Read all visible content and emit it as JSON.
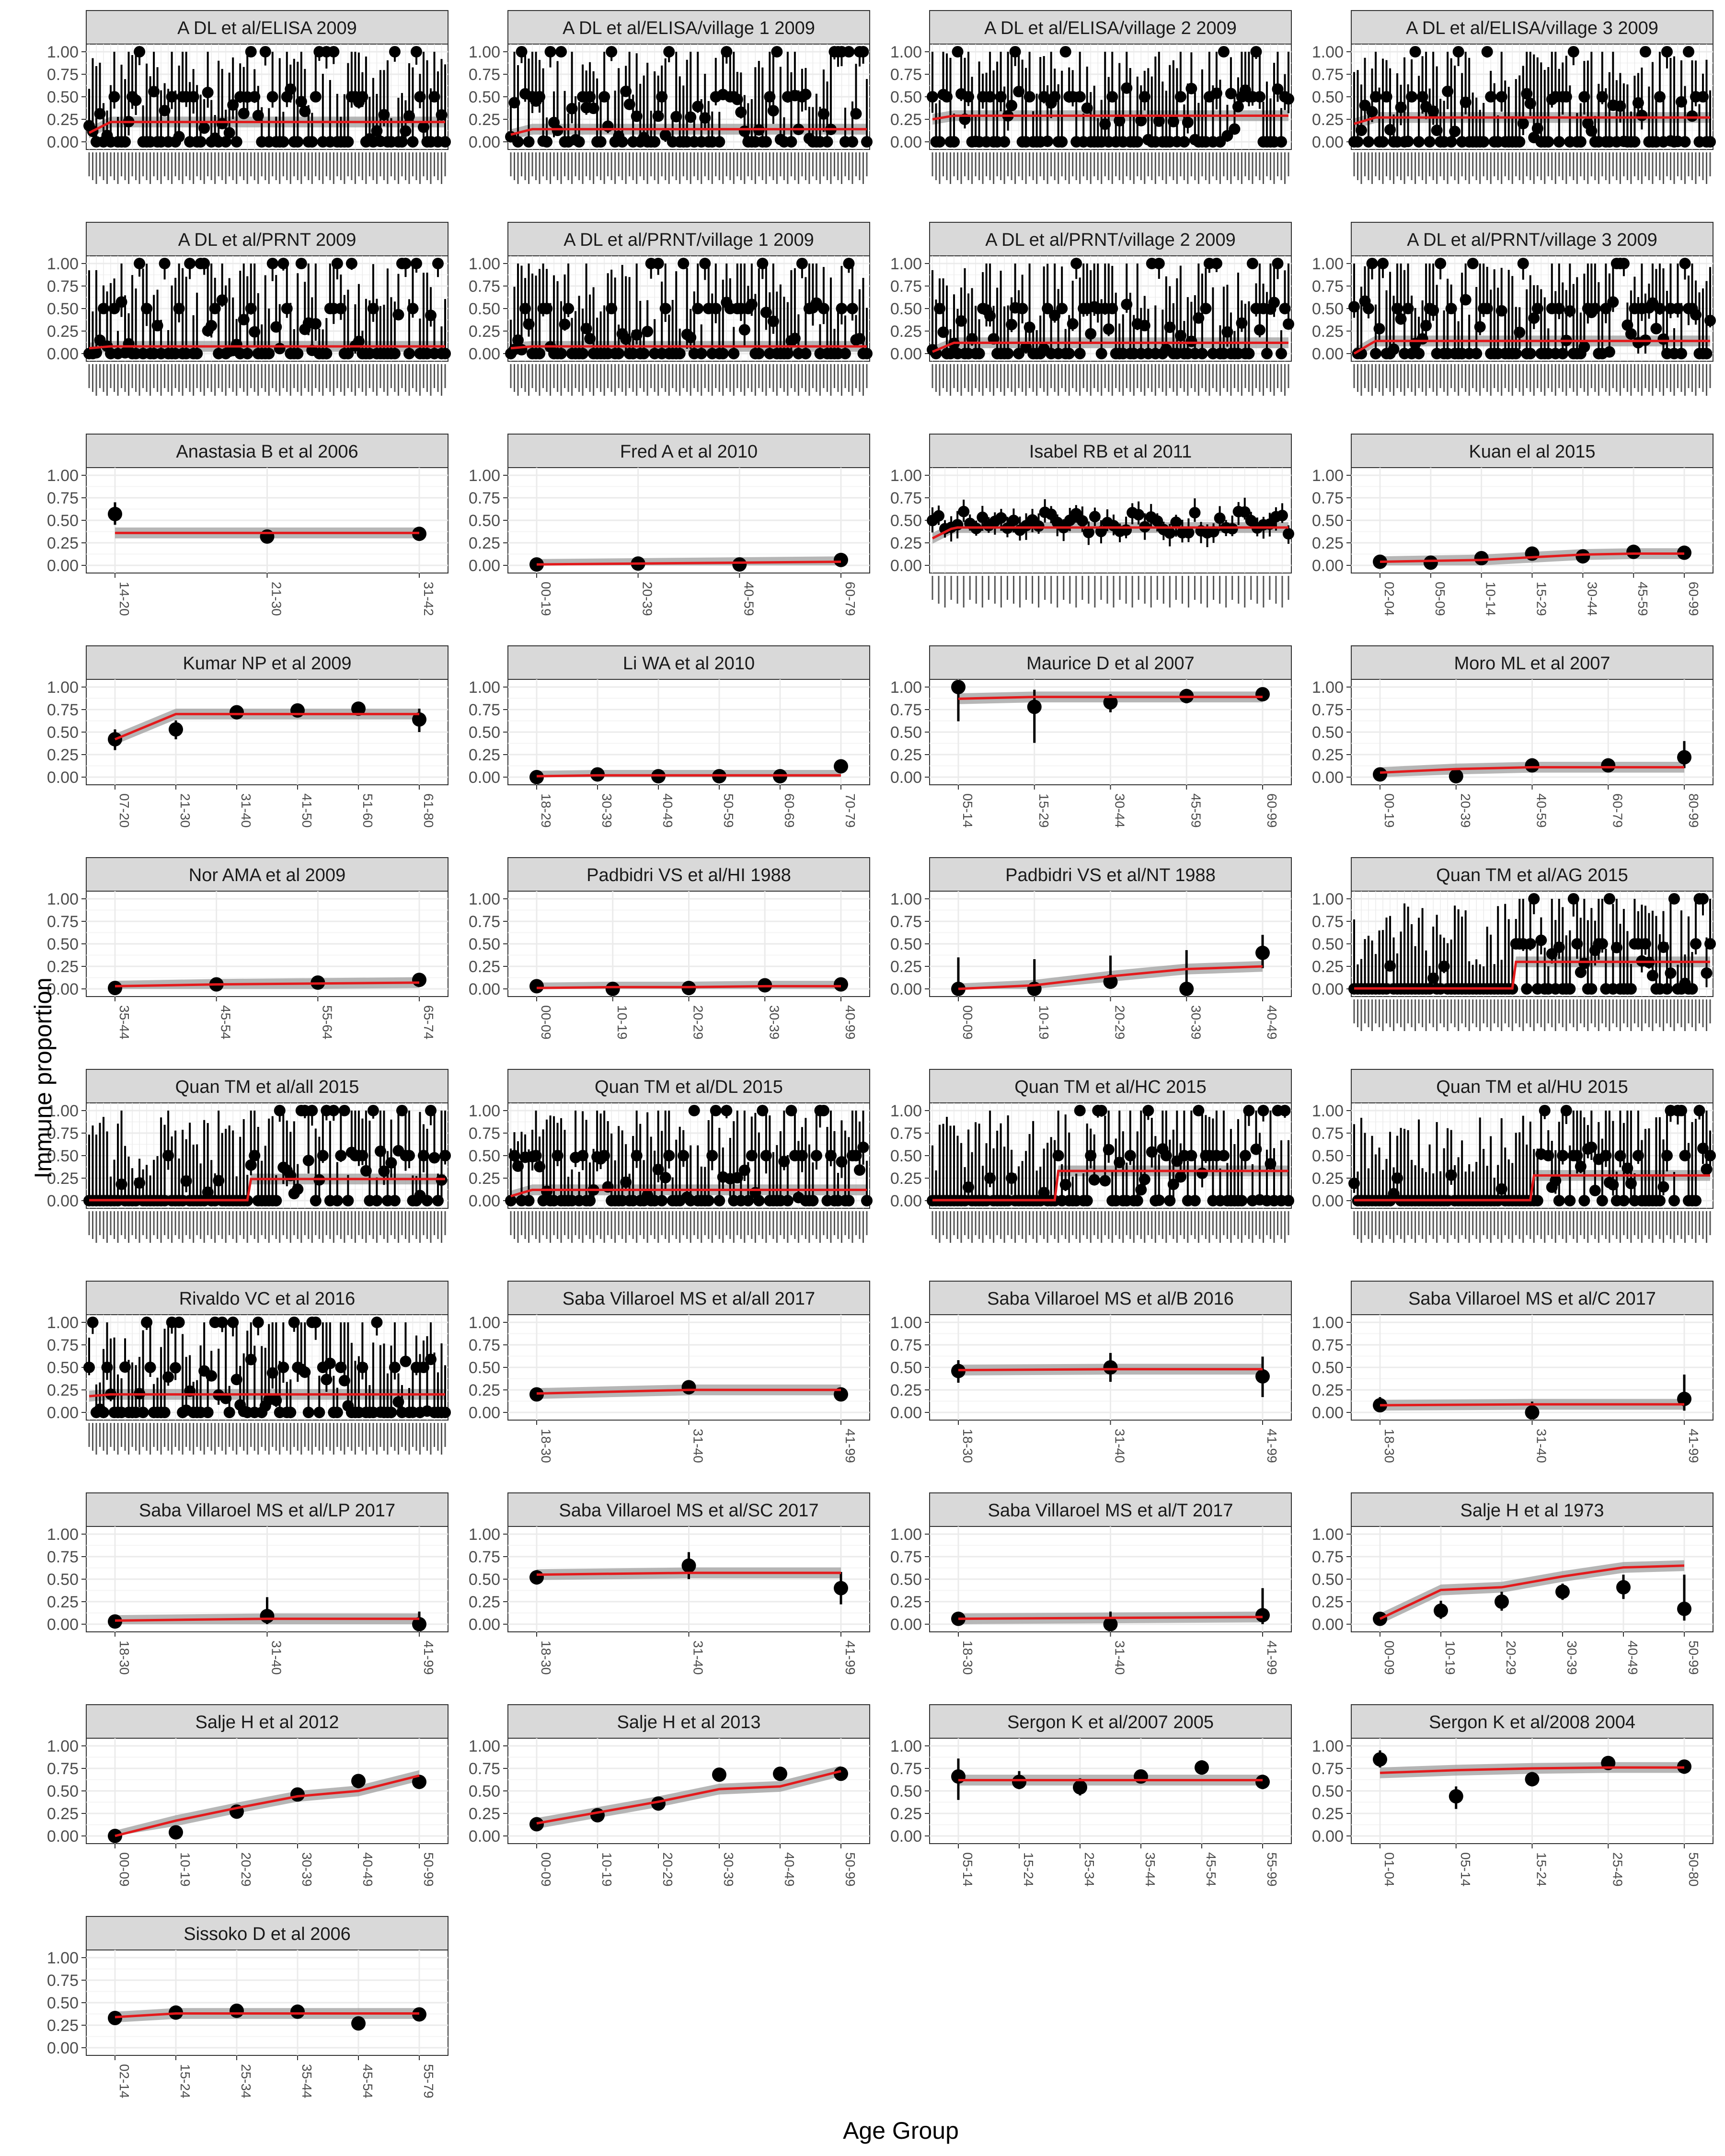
{
  "figure": {
    "xlabel": "Age Group",
    "ylabel": "Immune proportion",
    "yticks": [
      "0.00",
      "0.25",
      "0.50",
      "0.75",
      "1.00"
    ],
    "colors": {
      "strip_bg": "#d9d9d9",
      "panel_border": "#333333",
      "grid": "#ebebeb",
      "fit": "#e31a1c",
      "band": "#9e9e9e",
      "point": "#000000"
    }
  },
  "chart_data": [
    {
      "type": "scatter",
      "title": "A DL et al/ELISA 2009",
      "dense": true,
      "n": 100,
      "fit_level": 0.22,
      "fit_start": 0.1,
      "seed": 11,
      "ylim": [
        0,
        1
      ]
    },
    {
      "type": "scatter",
      "title": "A DL et al/ELISA/village 1 2009",
      "dense": true,
      "n": 100,
      "fit_level": 0.14,
      "fit_start": 0.08,
      "seed": 12,
      "ylim": [
        0,
        1
      ]
    },
    {
      "type": "scatter",
      "title": "A DL et al/ELISA/village 2 2009",
      "dense": true,
      "n": 100,
      "fit_level": 0.29,
      "fit_start": 0.25,
      "seed": 13,
      "ylim": [
        0,
        1
      ]
    },
    {
      "type": "scatter",
      "title": "A DL et al/ELISA/village 3 2009",
      "dense": true,
      "n": 100,
      "fit_level": 0.27,
      "fit_start": 0.2,
      "seed": 14,
      "ylim": [
        0,
        1
      ]
    },
    {
      "type": "scatter",
      "title": "A DL et al/PRNT 2009",
      "dense": true,
      "n": 100,
      "fit_level": 0.08,
      "fit_start": 0.06,
      "seed": 15,
      "ylim": [
        0,
        1
      ]
    },
    {
      "type": "scatter",
      "title": "A DL et al/PRNT/village 1 2009",
      "dense": true,
      "n": 100,
      "fit_level": 0.08,
      "fit_start": 0.06,
      "seed": 16,
      "ylim": [
        0,
        1
      ]
    },
    {
      "type": "scatter",
      "title": "A DL et al/PRNT/village 2 2009",
      "dense": true,
      "n": 100,
      "fit_level": 0.12,
      "fit_start": 0.02,
      "seed": 17,
      "ylim": [
        0,
        1
      ]
    },
    {
      "type": "scatter",
      "title": "A DL et al/PRNT/village 3 2009",
      "dense": true,
      "n": 100,
      "fit_level": 0.14,
      "fit_start": 0.0,
      "seed": 18,
      "ylim": [
        0,
        1
      ]
    },
    {
      "type": "scatter",
      "title": "Anastasia B et al 2006",
      "categories": [
        "14-20",
        "21-30",
        "31-42"
      ],
      "values": [
        0.57,
        0.32,
        0.35
      ],
      "lower": [
        0.45,
        0.29,
        0.31
      ],
      "upper": [
        0.7,
        0.36,
        0.4
      ],
      "fit": [
        0.36,
        0.36,
        0.36
      ],
      "ylim": [
        0,
        1
      ]
    },
    {
      "type": "scatter",
      "title": "Fred A et al 2010",
      "categories": [
        "00-19",
        "20-39",
        "40-59",
        "60-79"
      ],
      "values": [
        0.01,
        0.02,
        0.01,
        0.06
      ],
      "lower": [
        0.0,
        0.0,
        0.0,
        0.02
      ],
      "upper": [
        0.04,
        0.05,
        0.04,
        0.12
      ],
      "fit": [
        0.01,
        0.02,
        0.03,
        0.04
      ],
      "ylim": [
        0,
        1
      ]
    },
    {
      "type": "scatter",
      "title": "Isabel RB et al 2011",
      "dense": true,
      "n": 58,
      "fit_level": 0.42,
      "fit_start": 0.3,
      "mid": true,
      "seed": 19,
      "ylim": [
        0,
        1
      ]
    },
    {
      "type": "scatter",
      "title": "Kuan el al 2015",
      "categories": [
        "02-04",
        "05-09",
        "10-14",
        "15-29",
        "30-44",
        "45-59",
        "60-99"
      ],
      "values": [
        0.04,
        0.03,
        0.08,
        0.13,
        0.1,
        0.15,
        0.14
      ],
      "lower": [
        0.02,
        0.01,
        0.05,
        0.1,
        0.07,
        0.12,
        0.1
      ],
      "upper": [
        0.07,
        0.06,
        0.11,
        0.16,
        0.14,
        0.19,
        0.18
      ],
      "fit": [
        0.04,
        0.05,
        0.06,
        0.09,
        0.12,
        0.13,
        0.13
      ],
      "ylim": [
        0,
        1
      ]
    },
    {
      "type": "scatter",
      "title": "Kumar NP et al 2009",
      "categories": [
        "07-20",
        "21-30",
        "31-40",
        "41-50",
        "51-60",
        "61-80"
      ],
      "values": [
        0.42,
        0.53,
        0.72,
        0.74,
        0.76,
        0.64
      ],
      "lower": [
        0.3,
        0.42,
        0.64,
        0.67,
        0.7,
        0.5
      ],
      "upper": [
        0.53,
        0.63,
        0.79,
        0.8,
        0.82,
        0.76
      ],
      "fit": [
        0.42,
        0.7,
        0.7,
        0.7,
        0.7,
        0.7
      ],
      "ylim": [
        0,
        1
      ]
    },
    {
      "type": "scatter",
      "title": "Li WA et al 2010",
      "categories": [
        "18-29",
        "30-39",
        "40-49",
        "50-59",
        "60-69",
        "70-79"
      ],
      "values": [
        0.0,
        0.03,
        0.01,
        0.01,
        0.01,
        0.12
      ],
      "lower": [
        0.0,
        0.01,
        0.0,
        0.0,
        0.0,
        0.08
      ],
      "upper": [
        0.03,
        0.06,
        0.03,
        0.03,
        0.03,
        0.16
      ],
      "fit": [
        0.01,
        0.02,
        0.02,
        0.02,
        0.02,
        0.02
      ],
      "ylim": [
        0,
        1
      ]
    },
    {
      "type": "scatter",
      "title": "Maurice D et al 2007",
      "categories": [
        "05-14",
        "15-29",
        "30-44",
        "45-59",
        "60-99"
      ],
      "values": [
        1.0,
        0.78,
        0.83,
        0.9,
        0.92
      ],
      "lower": [
        0.62,
        0.38,
        0.72,
        0.82,
        0.87
      ],
      "upper": [
        1.0,
        0.97,
        0.92,
        0.96,
        0.96
      ],
      "fit": [
        0.87,
        0.89,
        0.89,
        0.89,
        0.89
      ],
      "ylim": [
        0,
        1
      ]
    },
    {
      "type": "scatter",
      "title": "Moro ML et al 2007",
      "categories": [
        "00-19",
        "20-39",
        "40-59",
        "60-79",
        "80-99"
      ],
      "values": [
        0.03,
        0.01,
        0.13,
        0.13,
        0.22
      ],
      "lower": [
        0.0,
        0.0,
        0.09,
        0.1,
        0.1
      ],
      "upper": [
        0.09,
        0.06,
        0.18,
        0.17,
        0.4
      ],
      "fit": [
        0.05,
        0.09,
        0.11,
        0.11,
        0.11
      ],
      "ylim": [
        0,
        1
      ]
    },
    {
      "type": "scatter",
      "title": "Nor AMA et al 2009",
      "categories": [
        "35-44",
        "45-54",
        "55-64",
        "65-74"
      ],
      "values": [
        0.01,
        0.05,
        0.07,
        0.1
      ],
      "lower": [
        0.0,
        0.03,
        0.05,
        0.06
      ],
      "upper": [
        0.04,
        0.08,
        0.1,
        0.16
      ],
      "fit": [
        0.03,
        0.05,
        0.06,
        0.07
      ],
      "ylim": [
        0,
        1
      ]
    },
    {
      "type": "scatter",
      "title": "Padbidri VS et al/HI 1988",
      "categories": [
        "00-09",
        "10-19",
        "20-29",
        "30-39",
        "40-99"
      ],
      "values": [
        0.03,
        0.0,
        0.01,
        0.04,
        0.05
      ],
      "lower": [
        0.0,
        0.0,
        0.0,
        0.01,
        0.02
      ],
      "upper": [
        0.06,
        0.03,
        0.04,
        0.07,
        0.09
      ],
      "fit": [
        0.01,
        0.02,
        0.02,
        0.03,
        0.03
      ],
      "ylim": [
        0,
        1
      ]
    },
    {
      "type": "scatter",
      "title": "Padbidri VS et al/NT 1988",
      "categories": [
        "00-09",
        "10-19",
        "20-29",
        "30-39",
        "40-49"
      ],
      "values": [
        0.0,
        0.0,
        0.08,
        0.0,
        0.4
      ],
      "lower": [
        0.0,
        0.0,
        0.0,
        0.0,
        0.23
      ],
      "upper": [
        0.35,
        0.33,
        0.37,
        0.43,
        0.6
      ],
      "fit": [
        0.0,
        0.04,
        0.14,
        0.22,
        0.25
      ],
      "ylim": [
        0,
        1
      ]
    },
    {
      "type": "scatter",
      "title": "Quan TM et al/AG 2015",
      "dense": true,
      "n": 100,
      "fit_level": 0.3,
      "fit_start": 0.0,
      "step": 0.45,
      "seed": 20,
      "ylim": [
        0,
        1
      ]
    },
    {
      "type": "scatter",
      "title": "Quan TM et al/all 2015",
      "dense": true,
      "n": 100,
      "fit_level": 0.24,
      "fit_start": 0.08,
      "step": 0.45,
      "seed": 21,
      "ylim": [
        0,
        1
      ]
    },
    {
      "type": "scatter",
      "title": "Quan TM et al/DL 2015",
      "dense": true,
      "n": 100,
      "fit_level": 0.12,
      "fit_start": 0.05,
      "seed": 22,
      "ylim": [
        0,
        1
      ]
    },
    {
      "type": "scatter",
      "title": "Quan TM et al/HC 2015",
      "dense": true,
      "n": 100,
      "fit_level": 0.33,
      "fit_start": 0.0,
      "step": 0.35,
      "seed": 23,
      "ylim": [
        0,
        1
      ]
    },
    {
      "type": "scatter",
      "title": "Quan TM et al/HU 2015",
      "dense": true,
      "n": 100,
      "fit_level": 0.28,
      "fit_start": 0.0,
      "step": 0.5,
      "seed": 24,
      "ylim": [
        0,
        1
      ]
    },
    {
      "type": "scatter",
      "title": "Rivaldo VC et al 2016",
      "dense": true,
      "n": 100,
      "fit_level": 0.2,
      "fit_start": 0.18,
      "seed": 25,
      "ylim": [
        0,
        1
      ]
    },
    {
      "type": "scatter",
      "title": "Saba Villaroel MS et al/all 2017",
      "categories": [
        "18-30",
        "31-40",
        "41-99"
      ],
      "values": [
        0.2,
        0.28,
        0.2
      ],
      "lower": [
        0.16,
        0.2,
        0.15
      ],
      "upper": [
        0.25,
        0.35,
        0.26
      ],
      "fit": [
        0.21,
        0.25,
        0.25
      ],
      "ylim": [
        0,
        1
      ]
    },
    {
      "type": "scatter",
      "title": "Saba Villaroel MS et al/B 2016",
      "categories": [
        "18-30",
        "31-40",
        "41-99"
      ],
      "values": [
        0.46,
        0.5,
        0.4
      ],
      "lower": [
        0.33,
        0.34,
        0.17
      ],
      "upper": [
        0.58,
        0.66,
        0.62
      ],
      "fit": [
        0.47,
        0.48,
        0.48
      ],
      "ylim": [
        0,
        1
      ]
    },
    {
      "type": "scatter",
      "title": "Saba Villaroel MS et al/C 2017",
      "categories": [
        "18-30",
        "31-40",
        "41-99"
      ],
      "values": [
        0.08,
        0.0,
        0.15
      ],
      "lower": [
        0.03,
        0.0,
        0.02
      ],
      "upper": [
        0.17,
        0.12,
        0.42
      ],
      "fit": [
        0.08,
        0.09,
        0.09
      ],
      "ylim": [
        0,
        1
      ]
    },
    {
      "type": "scatter",
      "title": "Saba Villaroel MS et al/LP 2017",
      "categories": [
        "18-30",
        "31-40",
        "41-99"
      ],
      "values": [
        0.03,
        0.09,
        0.0
      ],
      "lower": [
        0.0,
        0.0,
        0.0
      ],
      "upper": [
        0.08,
        0.3,
        0.14
      ],
      "fit": [
        0.04,
        0.06,
        0.06
      ],
      "ylim": [
        0,
        1
      ]
    },
    {
      "type": "scatter",
      "title": "Saba Villaroel MS et al/SC 2017",
      "categories": [
        "18-30",
        "31-40",
        "41-99"
      ],
      "values": [
        0.52,
        0.65,
        0.4
      ],
      "lower": [
        0.44,
        0.5,
        0.22
      ],
      "upper": [
        0.6,
        0.8,
        0.58
      ],
      "fit": [
        0.55,
        0.57,
        0.57
      ],
      "ylim": [
        0,
        1
      ]
    },
    {
      "type": "scatter",
      "title": "Saba Villaroel MS et al/T 2017",
      "categories": [
        "18-30",
        "31-40",
        "41-99"
      ],
      "values": [
        0.06,
        0.0,
        0.1
      ],
      "lower": [
        0.02,
        0.0,
        0.0
      ],
      "upper": [
        0.1,
        0.14,
        0.4
      ],
      "fit": [
        0.06,
        0.07,
        0.08
      ],
      "ylim": [
        0,
        1
      ]
    },
    {
      "type": "scatter",
      "title": "Salje H et al 1973",
      "categories": [
        "00-09",
        "10-19",
        "20-29",
        "30-39",
        "40-49",
        "50-99"
      ],
      "values": [
        0.06,
        0.15,
        0.25,
        0.36,
        0.41,
        0.17
      ],
      "lower": [
        0.02,
        0.06,
        0.15,
        0.27,
        0.28,
        0.04
      ],
      "upper": [
        0.12,
        0.26,
        0.36,
        0.45,
        0.55,
        0.55
      ],
      "fit": [
        0.06,
        0.38,
        0.41,
        0.53,
        0.63,
        0.65
      ],
      "ylim": [
        0,
        1
      ]
    },
    {
      "type": "scatter",
      "title": "Salje H et al 2012",
      "categories": [
        "00-09",
        "10-19",
        "20-29",
        "30-39",
        "40-49",
        "50-99"
      ],
      "values": [
        0.0,
        0.04,
        0.27,
        0.46,
        0.61,
        0.6
      ],
      "lower": [
        0.0,
        0.01,
        0.22,
        0.41,
        0.53,
        0.56
      ],
      "upper": [
        0.03,
        0.07,
        0.32,
        0.52,
        0.68,
        0.64
      ],
      "fit": [
        0.0,
        0.17,
        0.31,
        0.44,
        0.5,
        0.67
      ],
      "ylim": [
        0,
        1
      ]
    },
    {
      "type": "scatter",
      "title": "Salje H et al 2013",
      "categories": [
        "00-09",
        "10-19",
        "20-29",
        "30-39",
        "40-49",
        "50-99"
      ],
      "values": [
        0.13,
        0.23,
        0.36,
        0.68,
        0.69,
        0.69
      ],
      "lower": [
        0.09,
        0.19,
        0.31,
        0.61,
        0.62,
        0.65
      ],
      "upper": [
        0.17,
        0.27,
        0.4,
        0.75,
        0.76,
        0.73
      ],
      "fit": [
        0.14,
        0.26,
        0.38,
        0.52,
        0.55,
        0.72
      ],
      "ylim": [
        0,
        1
      ]
    },
    {
      "type": "scatter",
      "title": "Sergon K et al/2007 2005",
      "categories": [
        "05-14",
        "15-24",
        "25-34",
        "35-44",
        "45-54",
        "55-99"
      ],
      "values": [
        0.66,
        0.6,
        0.54,
        0.66,
        0.76,
        0.6
      ],
      "lower": [
        0.4,
        0.52,
        0.45,
        0.59,
        0.68,
        0.52
      ],
      "upper": [
        0.86,
        0.72,
        0.64,
        0.73,
        0.84,
        0.68
      ],
      "fit": [
        0.62,
        0.62,
        0.62,
        0.62,
        0.62,
        0.62
      ],
      "ylim": [
        0,
        1
      ]
    },
    {
      "type": "scatter",
      "title": "Sergon K et al/2008 2004",
      "categories": [
        "01-04",
        "05-14",
        "15-24",
        "25-49",
        "50-80"
      ],
      "values": [
        0.85,
        0.44,
        0.63,
        0.81,
        0.77
      ],
      "lower": [
        0.76,
        0.3,
        0.55,
        0.77,
        0.69
      ],
      "upper": [
        0.95,
        0.55,
        0.71,
        0.85,
        0.84
      ],
      "fit": [
        0.7,
        0.73,
        0.75,
        0.76,
        0.76
      ],
      "ylim": [
        0,
        1
      ]
    },
    {
      "type": "scatter",
      "title": "Sissoko D et al  2006",
      "categories": [
        "02-14",
        "15-24",
        "25-34",
        "35-44",
        "45-54",
        "55-79"
      ],
      "values": [
        0.33,
        0.39,
        0.41,
        0.4,
        0.27,
        0.37
      ],
      "lower": [
        0.3,
        0.35,
        0.37,
        0.36,
        0.24,
        0.33
      ],
      "upper": [
        0.37,
        0.43,
        0.45,
        0.44,
        0.31,
        0.42
      ],
      "fit": [
        0.34,
        0.38,
        0.38,
        0.38,
        0.38,
        0.38
      ],
      "ylim": [
        0,
        1
      ]
    }
  ]
}
